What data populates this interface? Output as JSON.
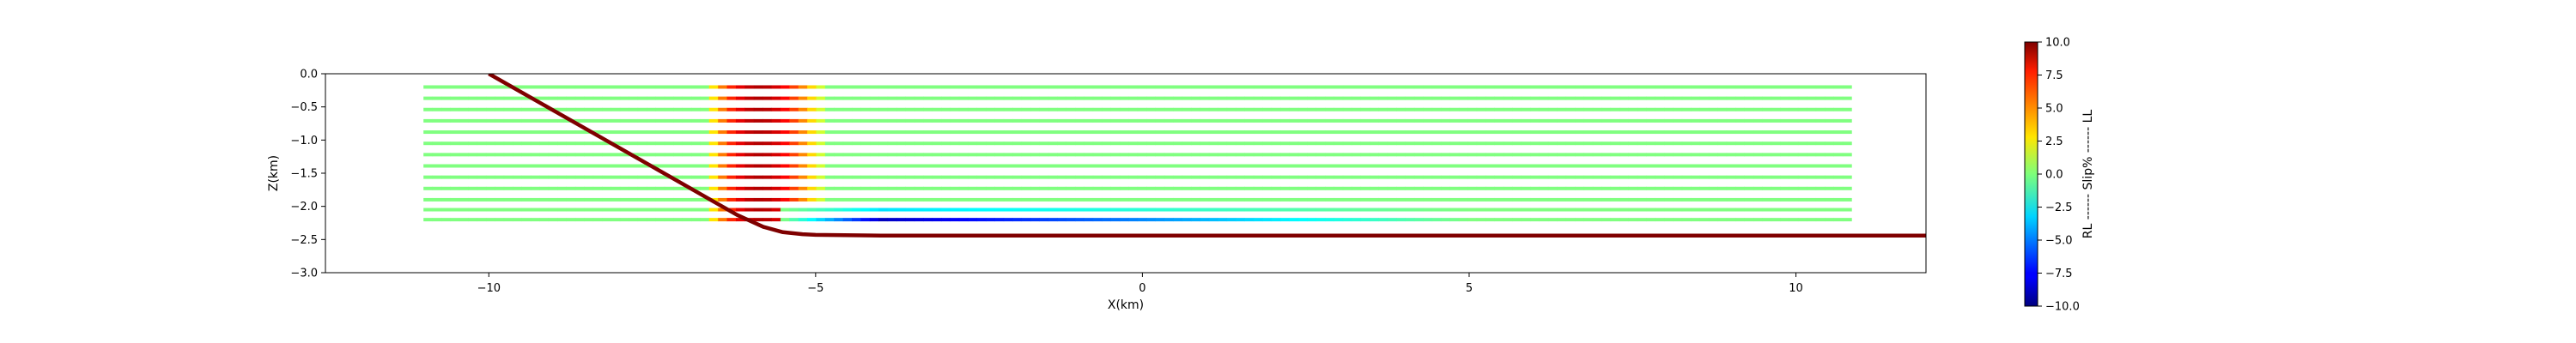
{
  "chart_data": {
    "type": "line",
    "title": "",
    "xlabel": "X(km)",
    "ylabel": "Z(km)",
    "xlim": [
      -12.5,
      11.99
    ],
    "ylim": [
      -3.0,
      0.0
    ],
    "xticks": [
      -10,
      -5,
      0,
      5,
      10
    ],
    "xtick_labels": [
      "−10",
      "−5",
      "0",
      "5",
      "10"
    ],
    "yticks": [
      0.0,
      -0.5,
      -1.0,
      -1.5,
      -2.0,
      -2.5,
      -3.0
    ],
    "ytick_labels": [
      "0.0",
      "−0.5",
      "−1.0",
      "−1.5",
      "−2.0",
      "−2.5",
      "−3.0"
    ],
    "grid": false,
    "series": [
      {
        "name": "fault",
        "color": "#7f0000",
        "x": [
          -10.0,
          -7.0,
          -6.2,
          -5.8,
          -5.5,
          -5.2,
          -5.0,
          -4.0,
          0.0,
          5.0,
          10.0,
          11.99
        ],
        "y": [
          0.0,
          -1.68,
          -2.13,
          -2.31,
          -2.39,
          -2.42,
          -2.43,
          -2.44,
          -2.44,
          -2.44,
          -2.44,
          -2.44
        ]
      }
    ],
    "slip_rows": {
      "x_start": -11.0,
      "x_end": 10.85,
      "depths": [
        -0.2,
        -0.37,
        -0.54,
        -0.71,
        -0.88,
        -1.05,
        -1.22,
        -1.39,
        -1.56,
        -1.73,
        -1.9,
        -2.05,
        -2.2
      ],
      "base_slip": 0.0,
      "positive_band": {
        "x_start": -6.7,
        "x_end": -4.8,
        "peak_slip": 9.0
      },
      "negative_band": {
        "x_start": -5.5,
        "x_end": 5.0,
        "depth_rows": [
          -2.05,
          -2.2
        ],
        "peak_slip": -9.0
      }
    },
    "colorbar": {
      "colormap": "jet",
      "vmin": -10.0,
      "vmax": 10.0,
      "ticks": [
        10.0,
        7.5,
        5.0,
        2.5,
        0.0,
        -2.5,
        -5.0,
        -7.5,
        -10.0
      ],
      "tick_labels": [
        "10.0",
        "7.5",
        "5.0",
        "2.5",
        "0.0",
        "−2.5",
        "−5.0",
        "−7.5",
        "−10.0"
      ],
      "label": "RL ------ Slip% ------ LL"
    }
  }
}
